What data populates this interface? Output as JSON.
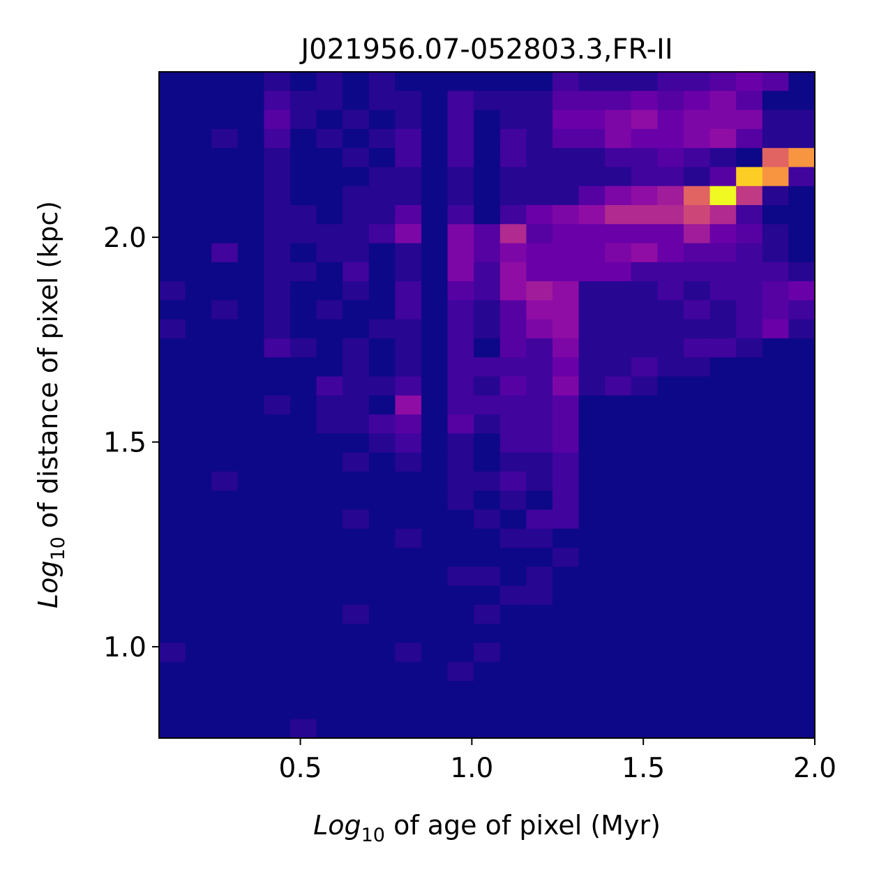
{
  "chart_data": {
    "type": "heatmap",
    "colormap": "plasma",
    "title": "J021956.07-052803.3,FR-II",
    "xlabel": {
      "base": "Log",
      "sub": "10",
      "rest": " of age of pixel (Myr)"
    },
    "ylabel": {
      "base": "Log",
      "sub": "10",
      "rest": " of distance of pixel (kpc)"
    },
    "xlim": [
      0.088,
      2.0
    ],
    "ylim": [
      0.777,
      2.404
    ],
    "xticks": [
      0.5,
      {
        "value": 1,
        "label": "1.0"
      },
      1.5,
      {
        "value": 2,
        "label": "2.0"
      }
    ],
    "yticks": [
      {
        "value": 1,
        "label": "1.0"
      },
      1.5,
      {
        "value": 2,
        "label": "2.0"
      }
    ],
    "z": [
      [
        0,
        0,
        0,
        0,
        1,
        0,
        1,
        0,
        1,
        0,
        0,
        0,
        0,
        0,
        0,
        2,
        1,
        1,
        1,
        2,
        2,
        3,
        4,
        3,
        0
      ],
      [
        0,
        0,
        0,
        0,
        2,
        1,
        1,
        0,
        1,
        1,
        0,
        2,
        1,
        1,
        1,
        3,
        3,
        3,
        4,
        3,
        4,
        5,
        3,
        0,
        0
      ],
      [
        0,
        0,
        0,
        0,
        3,
        1,
        0,
        1,
        0,
        1,
        0,
        2,
        0,
        1,
        1,
        4,
        4,
        5,
        6,
        4,
        5,
        5,
        5,
        1,
        1
      ],
      [
        0,
        0,
        1,
        0,
        2,
        0,
        1,
        0,
        1,
        2,
        0,
        2,
        0,
        2,
        1,
        3,
        3,
        5,
        4,
        4,
        5,
        6,
        3,
        1,
        1
      ],
      [
        0,
        0,
        0,
        0,
        1,
        0,
        0,
        1,
        0,
        2,
        0,
        2,
        0,
        2,
        1,
        1,
        1,
        2,
        2,
        3,
        2,
        1,
        0,
        12,
        15
      ],
      [
        0,
        0,
        0,
        0,
        1,
        0,
        0,
        0,
        1,
        1,
        0,
        1,
        0,
        1,
        1,
        1,
        1,
        1,
        2,
        2,
        1,
        3,
        18,
        15,
        2
      ],
      [
        0,
        0,
        0,
        0,
        1,
        0,
        0,
        1,
        1,
        1,
        0,
        1,
        0,
        1,
        1,
        1,
        3,
        5,
        6,
        7,
        12,
        20,
        9,
        1,
        0
      ],
      [
        0,
        0,
        0,
        0,
        1,
        1,
        0,
        1,
        1,
        3,
        0,
        2,
        0,
        2,
        4,
        5,
        6,
        8,
        8,
        8,
        10,
        8,
        2,
        0,
        0
      ],
      [
        0,
        0,
        0,
        0,
        1,
        1,
        1,
        1,
        2,
        5,
        0,
        5,
        3,
        8,
        3,
        4,
        4,
        4,
        4,
        4,
        7,
        4,
        3,
        1,
        0
      ],
      [
        0,
        0,
        2,
        0,
        1,
        0,
        1,
        1,
        0,
        1,
        0,
        5,
        3,
        5,
        4,
        4,
        4,
        5,
        6,
        4,
        3,
        3,
        2,
        1,
        0
      ],
      [
        0,
        0,
        0,
        0,
        1,
        1,
        0,
        2,
        0,
        1,
        0,
        5,
        2,
        6,
        4,
        4,
        4,
        4,
        2,
        2,
        2,
        2,
        2,
        2,
        1
      ],
      [
        1,
        0,
        0,
        0,
        1,
        0,
        0,
        1,
        0,
        2,
        0,
        3,
        2,
        6,
        7,
        6,
        1,
        1,
        1,
        2,
        1,
        2,
        2,
        3,
        4
      ],
      [
        0,
        0,
        1,
        0,
        1,
        0,
        1,
        0,
        0,
        2,
        0,
        2,
        1,
        3,
        6,
        6,
        1,
        1,
        1,
        1,
        2,
        1,
        2,
        3,
        2
      ],
      [
        1,
        0,
        0,
        0,
        1,
        0,
        0,
        0,
        1,
        1,
        0,
        2,
        1,
        3,
        5,
        6,
        1,
        1,
        1,
        1,
        1,
        1,
        2,
        4,
        1
      ],
      [
        0,
        0,
        0,
        0,
        2,
        1,
        0,
        1,
        0,
        1,
        0,
        2,
        0,
        3,
        2,
        5,
        1,
        1,
        1,
        1,
        2,
        2,
        1,
        0,
        0
      ],
      [
        0,
        0,
        0,
        0,
        0,
        0,
        0,
        1,
        0,
        1,
        0,
        2,
        2,
        2,
        2,
        4,
        1,
        1,
        2,
        1,
        1,
        0,
        0,
        0,
        0
      ],
      [
        0,
        0,
        0,
        0,
        0,
        0,
        2,
        1,
        1,
        2,
        0,
        2,
        1,
        3,
        2,
        5,
        1,
        2,
        1,
        0,
        0,
        0,
        0,
        0,
        0
      ],
      [
        0,
        0,
        0,
        0,
        1,
        0,
        1,
        1,
        0,
        6,
        0,
        2,
        2,
        2,
        2,
        3,
        0,
        0,
        0,
        0,
        0,
        0,
        0,
        0,
        0
      ],
      [
        0,
        0,
        0,
        0,
        0,
        0,
        1,
        1,
        2,
        3,
        0,
        3,
        1,
        2,
        2,
        3,
        0,
        0,
        0,
        0,
        0,
        0,
        0,
        0,
        0
      ],
      [
        0,
        0,
        0,
        0,
        0,
        0,
        0,
        0,
        1,
        2,
        0,
        1,
        0,
        2,
        2,
        3,
        0,
        0,
        0,
        0,
        0,
        0,
        0,
        0,
        0
      ],
      [
        0,
        0,
        0,
        0,
        0,
        0,
        0,
        1,
        0,
        1,
        0,
        1,
        0,
        1,
        1,
        2,
        0,
        0,
        0,
        0,
        0,
        0,
        0,
        0,
        0
      ],
      [
        0,
        0,
        1,
        0,
        0,
        0,
        0,
        0,
        0,
        0,
        0,
        1,
        1,
        2,
        1,
        2,
        0,
        0,
        0,
        0,
        0,
        0,
        0,
        0,
        0
      ],
      [
        0,
        0,
        0,
        0,
        0,
        0,
        0,
        0,
        0,
        0,
        0,
        1,
        0,
        1,
        0,
        2,
        0,
        0,
        0,
        0,
        0,
        0,
        0,
        0,
        0
      ],
      [
        0,
        0,
        0,
        0,
        0,
        0,
        0,
        1,
        0,
        0,
        0,
        0,
        1,
        0,
        2,
        2,
        0,
        0,
        0,
        0,
        0,
        0,
        0,
        0,
        0
      ],
      [
        0,
        0,
        0,
        0,
        0,
        0,
        0,
        0,
        0,
        1,
        0,
        0,
        0,
        1,
        1,
        0,
        0,
        0,
        0,
        0,
        0,
        0,
        0,
        0,
        0
      ],
      [
        0,
        0,
        0,
        0,
        0,
        0,
        0,
        0,
        0,
        0,
        0,
        0,
        0,
        0,
        0,
        1,
        0,
        0,
        0,
        0,
        0,
        0,
        0,
        0,
        0
      ],
      [
        0,
        0,
        0,
        0,
        0,
        0,
        0,
        0,
        0,
        0,
        0,
        1,
        1,
        0,
        1,
        0,
        0,
        0,
        0,
        0,
        0,
        0,
        0,
        0,
        0
      ],
      [
        0,
        0,
        0,
        0,
        0,
        0,
        0,
        0,
        0,
        0,
        0,
        0,
        0,
        1,
        1,
        0,
        0,
        0,
        0,
        0,
        0,
        0,
        0,
        0,
        0
      ],
      [
        0,
        0,
        0,
        0,
        0,
        0,
        0,
        1,
        0,
        0,
        0,
        0,
        1,
        0,
        0,
        0,
        0,
        0,
        0,
        0,
        0,
        0,
        0,
        0,
        0
      ],
      [
        0,
        0,
        0,
        0,
        0,
        0,
        0,
        0,
        0,
        0,
        0,
        0,
        0,
        0,
        0,
        0,
        0,
        0,
        0,
        0,
        0,
        0,
        0,
        0,
        0
      ],
      [
        1,
        0,
        0,
        0,
        0,
        0,
        0,
        0,
        0,
        1,
        0,
        0,
        1,
        0,
        0,
        0,
        0,
        0,
        0,
        0,
        0,
        0,
        0,
        0,
        0
      ],
      [
        0,
        0,
        0,
        0,
        0,
        0,
        0,
        0,
        0,
        0,
        0,
        1,
        0,
        0,
        0,
        0,
        0,
        0,
        0,
        0,
        0,
        0,
        0,
        0,
        0
      ],
      [
        0,
        0,
        0,
        0,
        0,
        0,
        0,
        0,
        0,
        0,
        0,
        0,
        0,
        0,
        0,
        0,
        0,
        0,
        0,
        0,
        0,
        0,
        0,
        0,
        0
      ],
      [
        0,
        0,
        0,
        0,
        0,
        0,
        0,
        0,
        0,
        0,
        0,
        0,
        0,
        0,
        0,
        0,
        0,
        0,
        0,
        0,
        0,
        0,
        0,
        0,
        0
      ],
      [
        0,
        0,
        0,
        0,
        0,
        1,
        0,
        0,
        0,
        0,
        0,
        0,
        0,
        0,
        0,
        0,
        0,
        0,
        0,
        0,
        0,
        0,
        0,
        0,
        0
      ]
    ]
  }
}
